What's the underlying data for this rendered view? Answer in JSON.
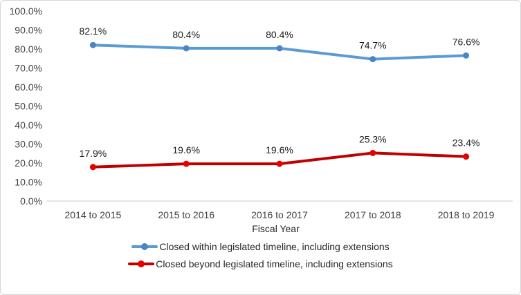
{
  "chart_data": {
    "type": "line",
    "title": "",
    "xlabel": "Fiscal Year",
    "categories": [
      "2014 to 2015",
      "2015 to 2016",
      "2016 to 2017",
      "2017 to 2018",
      "2018 to 2019"
    ],
    "series": [
      {
        "name": "Closed within legislated timeline, including extensions",
        "color": "#5B9BD5",
        "marker_color": "#4A86C6",
        "marker": "circle",
        "values": [
          82.1,
          80.4,
          80.4,
          74.7,
          76.6
        ],
        "labels": [
          "82.1%",
          "80.4%",
          "80.4%",
          "74.7%",
          "76.6%"
        ]
      },
      {
        "name": "Closed beyond legislated timeline, including extensions",
        "color": "#C00000",
        "marker_color": "#E60000",
        "marker": "circle",
        "values": [
          17.9,
          19.6,
          19.6,
          25.3,
          23.4
        ],
        "labels": [
          "17.9%",
          "19.6%",
          "19.6%",
          "25.3%",
          "23.4%"
        ]
      }
    ],
    "ylim": [
      0,
      100
    ],
    "ytick_step": 10,
    "ytick_labels": [
      "0.0%",
      "10.0%",
      "20.0%",
      "30.0%",
      "40.0%",
      "50.0%",
      "60.0%",
      "70.0%",
      "80.0%",
      "90.0%",
      "100.0%"
    ],
    "grid": false,
    "legend_position": "bottom",
    "axis_color": "#C9C9C9",
    "tick_text_color": "#404040",
    "data_label_color": "#1A1A1A"
  }
}
